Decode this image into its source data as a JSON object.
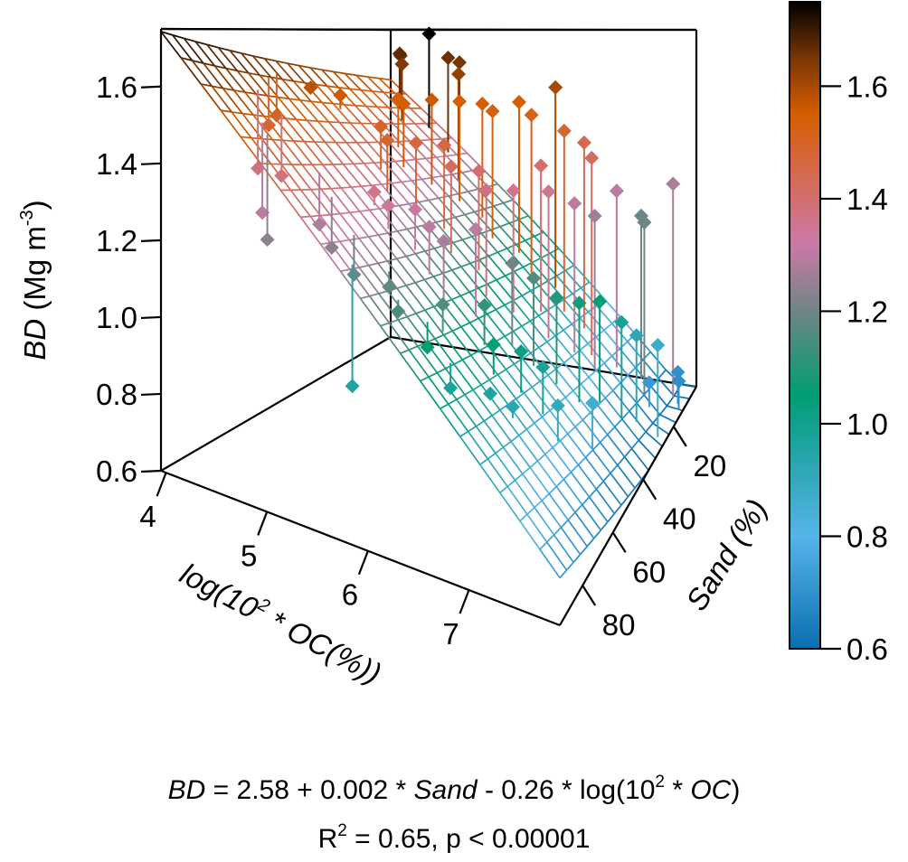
{
  "chart_data": {
    "type": "scatter3d-surface",
    "title": "",
    "axes": {
      "x": {
        "label_prefix": "log(10",
        "label_sup": "2",
        "label_suffix": " * OC(%))",
        "ticks": [
          4,
          5,
          6,
          7
        ],
        "range": [
          3.95,
          7.9
        ]
      },
      "y": {
        "label": "Sand (%)",
        "ticks": [
          20,
          40,
          60,
          80
        ],
        "range": [
          5,
          95
        ]
      },
      "z": {
        "label_italic": "BD",
        "label_unit": " (Mg m",
        "label_sup": "-3",
        "label_close": ")",
        "ticks": [
          "0.6",
          "0.8",
          "1.0",
          "1.2",
          "1.4",
          "1.6"
        ],
        "range": [
          0.6,
          1.75
        ]
      }
    },
    "surface": {
      "model": "BD = 2.58 + 0.002 * Sand - 0.26 * log(10^2 * OC)",
      "intercept": 2.58,
      "coef_sand": 0.002,
      "coef_logoc": -0.26,
      "grid_x_count": 20,
      "grid_y_count": 20
    },
    "colorbar": {
      "ticks": [
        "0.6",
        "0.8",
        "1.0",
        "1.2",
        "1.4",
        "1.6"
      ],
      "range": [
        0.6,
        1.75
      ],
      "stops": [
        {
          "v": 0.6,
          "color": "#0a6fb0"
        },
        {
          "v": 0.8,
          "color": "#56b4e9"
        },
        {
          "v": 0.93,
          "color": "#2aa6b0"
        },
        {
          "v": 1.05,
          "color": "#009e73"
        },
        {
          "v": 1.2,
          "color": "#6e8585"
        },
        {
          "v": 1.32,
          "color": "#cc79a7"
        },
        {
          "v": 1.45,
          "color": "#d5694a"
        },
        {
          "v": 1.55,
          "color": "#d55e00"
        },
        {
          "v": 1.65,
          "color": "#7a3505"
        },
        {
          "v": 1.75,
          "color": "#000000"
        }
      ]
    },
    "points": [
      {
        "x": 4.6,
        "y": 10,
        "z": 1.74
      },
      {
        "x": 4.3,
        "y": 12,
        "z": 1.66
      },
      {
        "x": 4.35,
        "y": 14,
        "z": 1.67
      },
      {
        "x": 4.5,
        "y": 18,
        "z": 1.64
      },
      {
        "x": 4.9,
        "y": 12,
        "z": 1.66
      },
      {
        "x": 5.1,
        "y": 14,
        "z": 1.65
      },
      {
        "x": 5.2,
        "y": 18,
        "z": 1.62
      },
      {
        "x": 4.4,
        "y": 40,
        "z": 1.56
      },
      {
        "x": 4.2,
        "y": 45,
        "z": 1.58
      },
      {
        "x": 4.1,
        "y": 55,
        "z": 1.5
      },
      {
        "x": 4.15,
        "y": 60,
        "z": 1.48
      },
      {
        "x": 4.3,
        "y": 70,
        "z": 1.38
      },
      {
        "x": 4.5,
        "y": 68,
        "z": 1.37
      },
      {
        "x": 4.6,
        "y": 80,
        "z": 1.3
      },
      {
        "x": 4.7,
        "y": 82,
        "z": 1.24
      },
      {
        "x": 4.8,
        "y": 30,
        "z": 1.55
      },
      {
        "x": 5.0,
        "y": 35,
        "z": 1.55
      },
      {
        "x": 5.2,
        "y": 30,
        "z": 1.56
      },
      {
        "x": 5.4,
        "y": 25,
        "z": 1.55
      },
      {
        "x": 5.6,
        "y": 22,
        "z": 1.54
      },
      {
        "x": 5.8,
        "y": 25,
        "z": 1.53
      },
      {
        "x": 6.0,
        "y": 20,
        "z": 1.55
      },
      {
        "x": 6.2,
        "y": 22,
        "z": 1.52
      },
      {
        "x": 6.4,
        "y": 18,
        "z": 1.6
      },
      {
        "x": 6.6,
        "y": 22,
        "z": 1.48
      },
      {
        "x": 6.8,
        "y": 20,
        "z": 1.44
      },
      {
        "x": 7.0,
        "y": 25,
        "z": 1.42
      },
      {
        "x": 5.0,
        "y": 45,
        "z": 1.5
      },
      {
        "x": 5.2,
        "y": 50,
        "z": 1.48
      },
      {
        "x": 5.4,
        "y": 45,
        "z": 1.47
      },
      {
        "x": 5.6,
        "y": 40,
        "z": 1.46
      },
      {
        "x": 5.8,
        "y": 45,
        "z": 1.42
      },
      {
        "x": 6.0,
        "y": 40,
        "z": 1.4
      },
      {
        "x": 6.2,
        "y": 45,
        "z": 1.37
      },
      {
        "x": 6.4,
        "y": 40,
        "z": 1.36
      },
      {
        "x": 5.3,
        "y": 60,
        "z": 1.36
      },
      {
        "x": 5.5,
        "y": 62,
        "z": 1.34
      },
      {
        "x": 5.7,
        "y": 58,
        "z": 1.33
      },
      {
        "x": 5.9,
        "y": 60,
        "z": 1.3
      },
      {
        "x": 6.1,
        "y": 62,
        "z": 1.28
      },
      {
        "x": 6.3,
        "y": 55,
        "z": 1.3
      },
      {
        "x": 5.0,
        "y": 72,
        "z": 1.28
      },
      {
        "x": 5.2,
        "y": 75,
        "z": 1.24
      },
      {
        "x": 5.5,
        "y": 78,
        "z": 1.2
      },
      {
        "x": 5.8,
        "y": 75,
        "z": 1.18
      },
      {
        "x": 6.0,
        "y": 80,
        "z": 1.15
      },
      {
        "x": 6.3,
        "y": 72,
        "z": 1.16
      },
      {
        "x": 6.5,
        "y": 30,
        "z": 1.4
      },
      {
        "x": 6.7,
        "y": 35,
        "z": 1.35
      },
      {
        "x": 6.9,
        "y": 30,
        "z": 1.3
      },
      {
        "x": 7.1,
        "y": 28,
        "z": 1.26
      },
      {
        "x": 7.2,
        "y": 20,
        "z": 1.3
      },
      {
        "x": 7.4,
        "y": 15,
        "z": 1.2
      },
      {
        "x": 7.5,
        "y": 18,
        "z": 1.2
      },
      {
        "x": 7.7,
        "y": 10,
        "z": 1.28
      },
      {
        "x": 6.6,
        "y": 50,
        "z": 1.2
      },
      {
        "x": 6.8,
        "y": 48,
        "z": 1.16
      },
      {
        "x": 7.0,
        "y": 45,
        "z": 1.1
      },
      {
        "x": 7.2,
        "y": 42,
        "z": 1.08
      },
      {
        "x": 6.5,
        "y": 60,
        "z": 1.12
      },
      {
        "x": 6.7,
        "y": 65,
        "z": 1.05
      },
      {
        "x": 6.9,
        "y": 60,
        "z": 1.02
      },
      {
        "x": 7.1,
        "y": 58,
        "z": 0.98
      },
      {
        "x": 7.3,
        "y": 35,
        "z": 1.05
      },
      {
        "x": 7.5,
        "y": 32,
        "z": 0.98
      },
      {
        "x": 7.6,
        "y": 28,
        "z": 0.92
      },
      {
        "x": 7.8,
        "y": 25,
        "z": 0.88
      },
      {
        "x": 6.2,
        "y": 75,
        "z": 1.05
      },
      {
        "x": 6.5,
        "y": 78,
        "z": 0.98
      },
      {
        "x": 6.8,
        "y": 72,
        "z": 0.96
      },
      {
        "x": 7.0,
        "y": 70,
        "z": 0.93
      },
      {
        "x": 7.3,
        "y": 60,
        "z": 0.9
      },
      {
        "x": 7.5,
        "y": 50,
        "z": 0.86
      },
      {
        "x": 5.7,
        "y": 88,
        "z": 0.96
      },
      {
        "x": 7.6,
        "y": 20,
        "z": 0.72
      },
      {
        "x": 7.8,
        "y": 12,
        "z": 0.7
      },
      {
        "x": 7.85,
        "y": 14,
        "z": 0.69
      }
    ]
  },
  "equation": {
    "line1": {
      "lhs": "BD",
      "part1": " = 2.58 + 0.002 * ",
      "sand": "Sand",
      "part2": " - 0.26 * log(10",
      "sup": "2",
      "part3": " * ",
      "oc": "OC",
      "close": ")"
    },
    "line2": {
      "r": "R",
      "sup": "2",
      "rest": " = 0.65, p < 0.00001"
    }
  }
}
